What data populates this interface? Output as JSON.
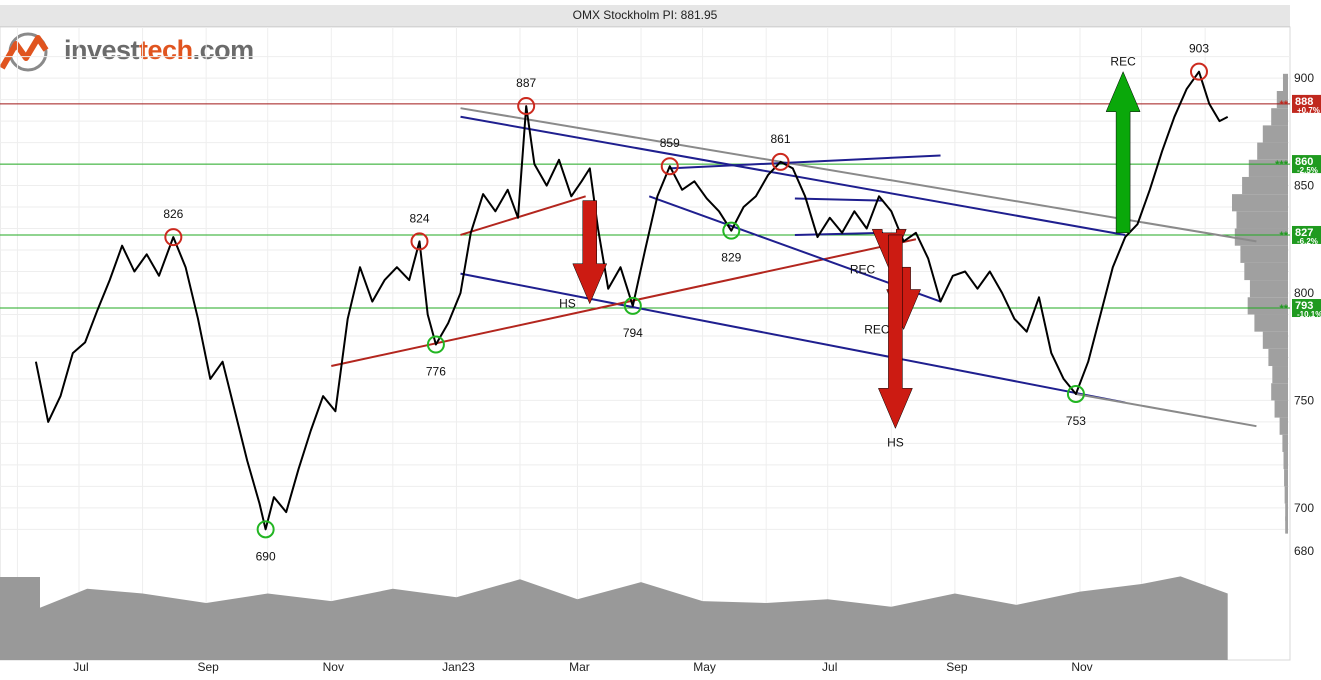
{
  "logo": {
    "text_prefix": "invest",
    "text_accent": "tech",
    "text_suffix": ".com",
    "accent_color": "#e0541f"
  },
  "chart_data": {
    "type": "line",
    "title": "OMX Stockholm PI: 881.95",
    "last_value": 881.95,
    "y_ticks": [
      680,
      700,
      750,
      800,
      850,
      900
    ],
    "ylim": [
      672,
      921
    ],
    "x_ticks": [
      "Jul",
      "Sep",
      "Nov",
      "Jan23",
      "Mar",
      "May",
      "Jul",
      "Sep",
      "Nov"
    ],
    "x_range": [
      "2022-06-12",
      "2023-12-29"
    ],
    "grid": true,
    "series": [
      {
        "color": "#000000",
        "points": [
          [
            "2022-06-10",
            768
          ],
          [
            "2022-06-16",
            740
          ],
          [
            "2022-06-22",
            752
          ],
          [
            "2022-06-28",
            772
          ],
          [
            "2022-07-04",
            777
          ],
          [
            "2022-07-10",
            792
          ],
          [
            "2022-07-16",
            806
          ],
          [
            "2022-07-22",
            822
          ],
          [
            "2022-07-28",
            810
          ],
          [
            "2022-08-03",
            818
          ],
          [
            "2022-08-09",
            808
          ],
          [
            "2022-08-16",
            826
          ],
          [
            "2022-08-22",
            812
          ],
          [
            "2022-08-28",
            788
          ],
          [
            "2022-09-03",
            760
          ],
          [
            "2022-09-09",
            768
          ],
          [
            "2022-09-15",
            745
          ],
          [
            "2022-09-21",
            722
          ],
          [
            "2022-09-27",
            702
          ],
          [
            "2022-09-30",
            690
          ],
          [
            "2022-10-04",
            705
          ],
          [
            "2022-10-10",
            698
          ],
          [
            "2022-10-16",
            718
          ],
          [
            "2022-10-22",
            736
          ],
          [
            "2022-10-28",
            752
          ],
          [
            "2022-11-03",
            745
          ],
          [
            "2022-11-09",
            788
          ],
          [
            "2022-11-15",
            812
          ],
          [
            "2022-11-21",
            796
          ],
          [
            "2022-11-27",
            806
          ],
          [
            "2022-12-03",
            812
          ],
          [
            "2022-12-09",
            806
          ],
          [
            "2022-12-14",
            824
          ],
          [
            "2022-12-18",
            790
          ],
          [
            "2022-12-22",
            776
          ],
          [
            "2022-12-28",
            786
          ],
          [
            "2023-01-03",
            800
          ],
          [
            "2023-01-08",
            828
          ],
          [
            "2023-01-14",
            846
          ],
          [
            "2023-01-20",
            838
          ],
          [
            "2023-01-26",
            848
          ],
          [
            "2023-01-31",
            835
          ],
          [
            "2023-02-04",
            887
          ],
          [
            "2023-02-08",
            860
          ],
          [
            "2023-02-14",
            850
          ],
          [
            "2023-02-20",
            862
          ],
          [
            "2023-02-26",
            845
          ],
          [
            "2023-03-03",
            852
          ],
          [
            "2023-03-07",
            858
          ],
          [
            "2023-03-11",
            830
          ],
          [
            "2023-03-16",
            802
          ],
          [
            "2023-03-22",
            812
          ],
          [
            "2023-03-28",
            794
          ],
          [
            "2023-04-03",
            820
          ],
          [
            "2023-04-09",
            845
          ],
          [
            "2023-04-15",
            859
          ],
          [
            "2023-04-21",
            848
          ],
          [
            "2023-04-27",
            852
          ],
          [
            "2023-05-03",
            844
          ],
          [
            "2023-05-09",
            838
          ],
          [
            "2023-05-15",
            829
          ],
          [
            "2023-05-21",
            840
          ],
          [
            "2023-05-27",
            845
          ],
          [
            "2023-06-02",
            855
          ],
          [
            "2023-06-08",
            861
          ],
          [
            "2023-06-14",
            858
          ],
          [
            "2023-06-20",
            845
          ],
          [
            "2023-06-26",
            826
          ],
          [
            "2023-07-02",
            835
          ],
          [
            "2023-07-08",
            828
          ],
          [
            "2023-07-14",
            838
          ],
          [
            "2023-07-20",
            830
          ],
          [
            "2023-07-26",
            845
          ],
          [
            "2023-08-01",
            838
          ],
          [
            "2023-08-07",
            824
          ],
          [
            "2023-08-13",
            828
          ],
          [
            "2023-08-19",
            816
          ],
          [
            "2023-08-25",
            796
          ],
          [
            "2023-08-31",
            808
          ],
          [
            "2023-09-06",
            810
          ],
          [
            "2023-09-12",
            802
          ],
          [
            "2023-09-18",
            810
          ],
          [
            "2023-09-24",
            800
          ],
          [
            "2023-09-30",
            788
          ],
          [
            "2023-10-06",
            782
          ],
          [
            "2023-10-12",
            798
          ],
          [
            "2023-10-18",
            772
          ],
          [
            "2023-10-24",
            760
          ],
          [
            "2023-10-30",
            753
          ],
          [
            "2023-11-05",
            768
          ],
          [
            "2023-11-11",
            790
          ],
          [
            "2023-11-17",
            812
          ],
          [
            "2023-11-23",
            826
          ],
          [
            "2023-11-29",
            832
          ],
          [
            "2023-12-05",
            848
          ],
          [
            "2023-12-11",
            866
          ],
          [
            "2023-12-17",
            882
          ],
          [
            "2023-12-23",
            895
          ],
          [
            "2023-12-29",
            903
          ],
          [
            "2024-01-03",
            888
          ],
          [
            "2024-01-08",
            880
          ],
          [
            "2024-01-12",
            881.95
          ]
        ]
      }
    ],
    "horizontal_levels": [
      {
        "value": 888,
        "label": "888",
        "pct": "+0.7",
        "marker": "**",
        "line_color": "#a01818",
        "box_color": "#c0281e"
      },
      {
        "value": 860,
        "label": "860",
        "pct": "-2.5",
        "marker": "***",
        "line_color": "#22aa22",
        "box_color": "#1f9a1f"
      },
      {
        "value": 827,
        "label": "827",
        "pct": "-6.2",
        "marker": "**",
        "line_color": "#22aa22",
        "box_color": "#1f9a1f"
      },
      {
        "value": 793,
        "label": "793",
        "pct": "-10.1",
        "marker": "**",
        "line_color": "#22aa22",
        "box_color": "#1f9a1f"
      }
    ],
    "value_labels": [
      {
        "text": "826",
        "date": "2022-08-16",
        "value": 826,
        "kind": "top"
      },
      {
        "text": "690",
        "date": "2022-09-30",
        "value": 690,
        "kind": "bottom"
      },
      {
        "text": "824",
        "date": "2022-12-14",
        "value": 824,
        "kind": "top"
      },
      {
        "text": "776",
        "date": "2022-12-22",
        "value": 776,
        "kind": "bottom"
      },
      {
        "text": "887",
        "date": "2023-02-04",
        "value": 887,
        "kind": "top"
      },
      {
        "text": "794",
        "date": "2023-03-28",
        "value": 794,
        "kind": "bottom"
      },
      {
        "text": "859",
        "date": "2023-04-15",
        "value": 859,
        "kind": "top"
      },
      {
        "text": "829",
        "date": "2023-05-15",
        "value": 829,
        "kind": "bottom"
      },
      {
        "text": "861",
        "date": "2023-06-08",
        "value": 861,
        "kind": "top"
      },
      {
        "text": "753",
        "date": "2023-10-30",
        "value": 753,
        "kind": "bottom"
      },
      {
        "text": "903",
        "date": "2023-12-29",
        "value": 903,
        "kind": "top"
      }
    ],
    "trend_lines": [
      {
        "color": "#1f1f8f",
        "from": [
          "2023-01-03",
          882
        ],
        "to": [
          "2023-11-23",
          827
        ]
      },
      {
        "color": "#8a8a8a",
        "from": [
          "2023-01-03",
          886
        ],
        "to": [
          "2024-01-26",
          824
        ]
      },
      {
        "color": "#1f1f8f",
        "from": [
          "2023-01-03",
          809
        ],
        "to": [
          "2023-11-23",
          749
        ]
      },
      {
        "color": "#8a8a8a",
        "from": [
          "2023-10-30",
          753
        ],
        "to": [
          "2024-01-26",
          738
        ]
      },
      {
        "color": "#b3261e",
        "from": [
          "2022-11-01",
          766
        ],
        "to": [
          "2023-08-13",
          825
        ]
      },
      {
        "color": "#b3261e",
        "from": [
          "2023-01-03",
          827
        ],
        "to": [
          "2023-03-05",
          845
        ]
      },
      {
        "color": "#1f1f8f",
        "from": [
          "2023-04-15",
          858
        ],
        "to": [
          "2023-08-25",
          864
        ]
      },
      {
        "color": "#1f1f8f",
        "from": [
          "2023-04-05",
          845
        ],
        "to": [
          "2023-08-25",
          796
        ]
      },
      {
        "color": "#1f1f8f",
        "from": [
          "2023-06-15",
          844
        ],
        "to": [
          "2023-07-28",
          843
        ]
      },
      {
        "color": "#1f1f8f",
        "from": [
          "2023-06-15",
          827
        ],
        "to": [
          "2023-07-28",
          828
        ]
      }
    ],
    "signals": [
      {
        "label": "HS",
        "direction": "down",
        "color": "#cc1b12",
        "date": "2023-03-07",
        "from": 843,
        "to": 795,
        "label_side": "left"
      },
      {
        "label": "REC",
        "direction": "down",
        "color": "#cc1b12",
        "date": "2023-07-31",
        "from": 828,
        "to": 811,
        "label_side": "left"
      },
      {
        "label": "REC",
        "direction": "down",
        "color": "#cc1b12",
        "date": "2023-08-07",
        "from": 812,
        "to": 783,
        "label_side": "left"
      },
      {
        "label": "HS",
        "direction": "down",
        "color": "#cc1b12",
        "date": "2023-08-03",
        "from": 827,
        "to": 737,
        "label_side": "below"
      },
      {
        "label": "REC",
        "direction": "up",
        "color": "#0aa80a",
        "date": "2023-11-22",
        "from": 828,
        "to": 903,
        "label_side": "above"
      }
    ],
    "volume_profile": [
      {
        "value": 898,
        "size": 0.09
      },
      {
        "value": 890,
        "size": 0.2
      },
      {
        "value": 882,
        "size": 0.3
      },
      {
        "value": 874,
        "size": 0.45
      },
      {
        "value": 866,
        "size": 0.55
      },
      {
        "value": 858,
        "size": 0.7
      },
      {
        "value": 850,
        "size": 0.82
      },
      {
        "value": 842,
        "size": 1.0
      },
      {
        "value": 834,
        "size": 0.92
      },
      {
        "value": 826,
        "size": 0.95
      },
      {
        "value": 818,
        "size": 0.85
      },
      {
        "value": 810,
        "size": 0.78
      },
      {
        "value": 802,
        "size": 0.68
      },
      {
        "value": 794,
        "size": 0.72
      },
      {
        "value": 786,
        "size": 0.6
      },
      {
        "value": 778,
        "size": 0.45
      },
      {
        "value": 770,
        "size": 0.35
      },
      {
        "value": 762,
        "size": 0.28
      },
      {
        "value": 754,
        "size": 0.3
      },
      {
        "value": 746,
        "size": 0.24
      },
      {
        "value": 738,
        "size": 0.15
      },
      {
        "value": 730,
        "size": 0.1
      },
      {
        "value": 722,
        "size": 0.08
      },
      {
        "value": 714,
        "size": 0.07
      },
      {
        "value": 706,
        "size": 0.06
      },
      {
        "value": 698,
        "size": 0.05
      },
      {
        "value": 692,
        "size": 0.05
      }
    ],
    "volume_band": [
      [
        "2022-06-12",
        0.55
      ],
      [
        "2022-07-05",
        0.75
      ],
      [
        "2022-08-01",
        0.7
      ],
      [
        "2022-09-01",
        0.6
      ],
      [
        "2022-10-01",
        0.7
      ],
      [
        "2022-11-01",
        0.62
      ],
      [
        "2022-12-01",
        0.75
      ],
      [
        "2023-01-01",
        0.66
      ],
      [
        "2023-02-01",
        0.85
      ],
      [
        "2023-03-01",
        0.64
      ],
      [
        "2023-04-01",
        0.82
      ],
      [
        "2023-05-01",
        0.62
      ],
      [
        "2023-06-01",
        0.6
      ],
      [
        "2023-07-01",
        0.64
      ],
      [
        "2023-08-01",
        0.56
      ],
      [
        "2023-09-01",
        0.7
      ],
      [
        "2023-10-01",
        0.58
      ],
      [
        "2023-11-01",
        0.72
      ],
      [
        "2023-12-01",
        0.8
      ],
      [
        "2023-12-20",
        0.88
      ],
      [
        "2024-01-12",
        0.7
      ]
    ]
  }
}
